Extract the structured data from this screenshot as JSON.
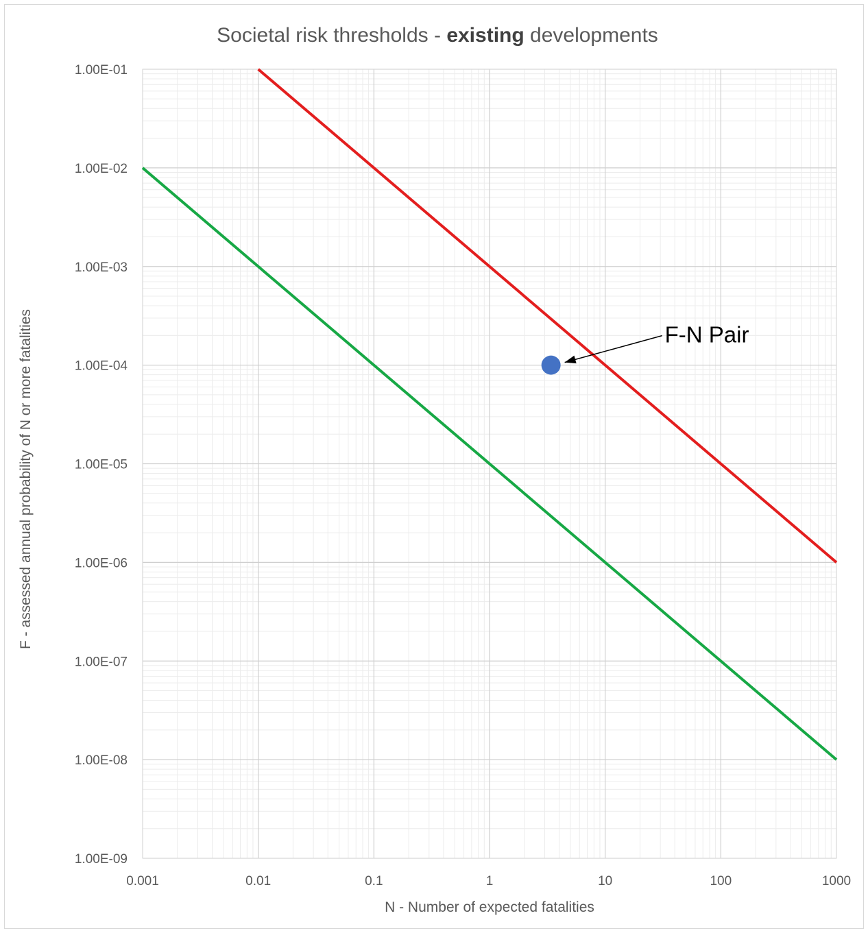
{
  "chart_data": {
    "type": "line",
    "title": {
      "prefix": "Societal risk thresholds - ",
      "bold": "existing",
      "suffix": " developments"
    },
    "xlabel": "N - Number of expected fatalities",
    "ylabel": "F - assessed annual probability of N or more fatalities",
    "x_scale": "log",
    "y_scale": "log",
    "xlim": [
      0.001,
      1000
    ],
    "ylim": [
      1e-09,
      0.1
    ],
    "x_tick_labels": [
      "0.001",
      "0.01",
      "0.1",
      "1",
      "10",
      "100",
      "1000"
    ],
    "y_tick_labels": [
      "1.00E-09",
      "1.00E-08",
      "1.00E-07",
      "1.00E-06",
      "1.00E-05",
      "1.00E-04",
      "1.00E-03",
      "1.00E-02",
      "1.00E-01"
    ],
    "grid": true,
    "minor_grid": true,
    "series": [
      {
        "color": "#e31e1e",
        "x": [
          0.01,
          1000
        ],
        "y": [
          0.1,
          1e-06
        ]
      },
      {
        "color": "#17a845",
        "x": [
          0.001,
          1000
        ],
        "y": [
          0.01,
          1e-08
        ]
      },
      {
        "color": "#4472c4",
        "marker": "circle",
        "x": [
          3.4
        ],
        "y": [
          0.0001
        ]
      }
    ],
    "annotations": [
      {
        "text": "F-N Pair",
        "target": {
          "x": 3.4,
          "y": 0.0001
        }
      }
    ]
  }
}
